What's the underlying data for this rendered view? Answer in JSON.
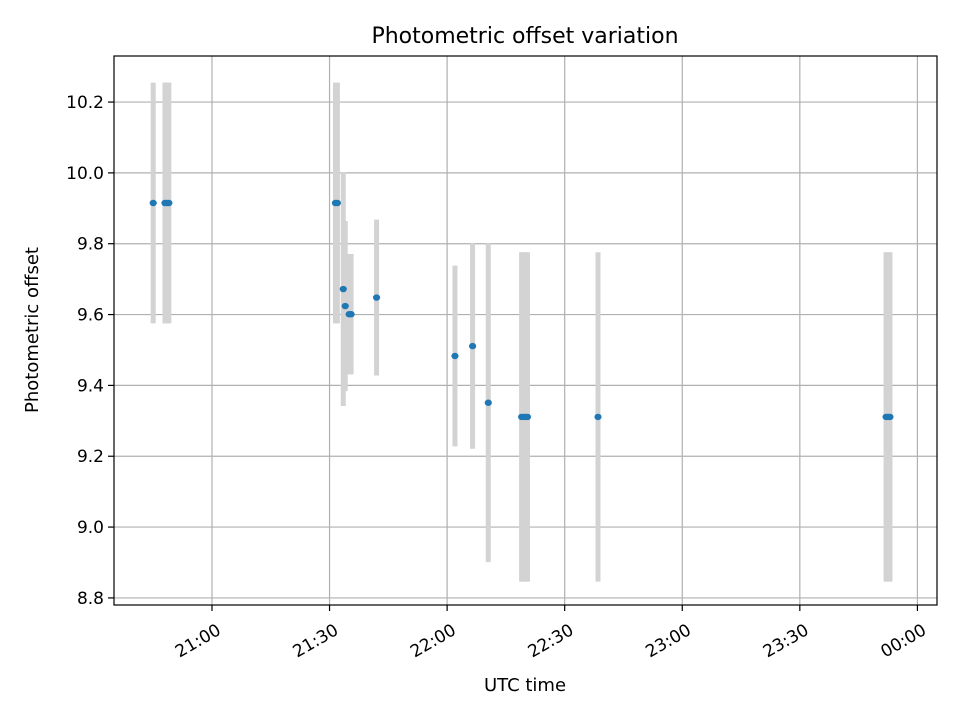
{
  "chart_data": {
    "type": "scatter",
    "title": "Photometric offset variation",
    "xlabel": "UTC time",
    "ylabel": "Photometric offset",
    "x_unit": "UTC time (HH:MM)",
    "xlim": [
      "20:35",
      "00:05"
    ],
    "ylim": [
      8.78,
      10.33
    ],
    "x_ticks": [
      "21:00",
      "21:30",
      "22:00",
      "22:30",
      "23:00",
      "23:30",
      "00:00"
    ],
    "y_ticks": [
      8.8,
      9.0,
      9.2,
      9.4,
      9.6,
      9.8,
      10.0,
      10.2
    ],
    "grid": true,
    "colors": {
      "point": "#1f77b4",
      "errorbar": "#d3d3d3",
      "grid": "#b0b0b0"
    },
    "points": [
      {
        "time": "20:45:00",
        "y": 9.915,
        "err": 0.34
      },
      {
        "time": "20:48:00",
        "y": 9.915,
        "err": 0.34
      },
      {
        "time": "20:48:30",
        "y": 9.915,
        "err": 0.34
      },
      {
        "time": "20:49:00",
        "y": 9.915,
        "err": 0.34
      },
      {
        "time": "21:31:30",
        "y": 9.915,
        "err": 0.34
      },
      {
        "time": "21:32:00",
        "y": 9.915,
        "err": 0.34
      },
      {
        "time": "21:33:30",
        "y": 9.672,
        "err": 0.33
      },
      {
        "time": "21:34:00",
        "y": 9.624,
        "err": 0.24
      },
      {
        "time": "21:35:00",
        "y": 9.601,
        "err": 0.17
      },
      {
        "time": "21:35:30",
        "y": 9.601,
        "err": 0.17
      },
      {
        "time": "21:42:00",
        "y": 9.648,
        "err": 0.22
      },
      {
        "time": "22:02:00",
        "y": 9.483,
        "err": 0.255
      },
      {
        "time": "22:06:30",
        "y": 9.511,
        "err": 0.29
      },
      {
        "time": "22:10:30",
        "y": 9.351,
        "err": 0.45
      },
      {
        "time": "22:19:00",
        "y": 9.311,
        "err": 0.465
      },
      {
        "time": "22:19:30",
        "y": 9.311,
        "err": 0.465
      },
      {
        "time": "22:20:00",
        "y": 9.311,
        "err": 0.465
      },
      {
        "time": "22:20:30",
        "y": 9.311,
        "err": 0.465
      },
      {
        "time": "22:38:30",
        "y": 9.311,
        "err": 0.465
      },
      {
        "time": "23:52:00",
        "y": 9.311,
        "err": 0.465
      },
      {
        "time": "23:52:30",
        "y": 9.311,
        "err": 0.465
      },
      {
        "time": "23:53:00",
        "y": 9.311,
        "err": 0.465
      }
    ]
  }
}
